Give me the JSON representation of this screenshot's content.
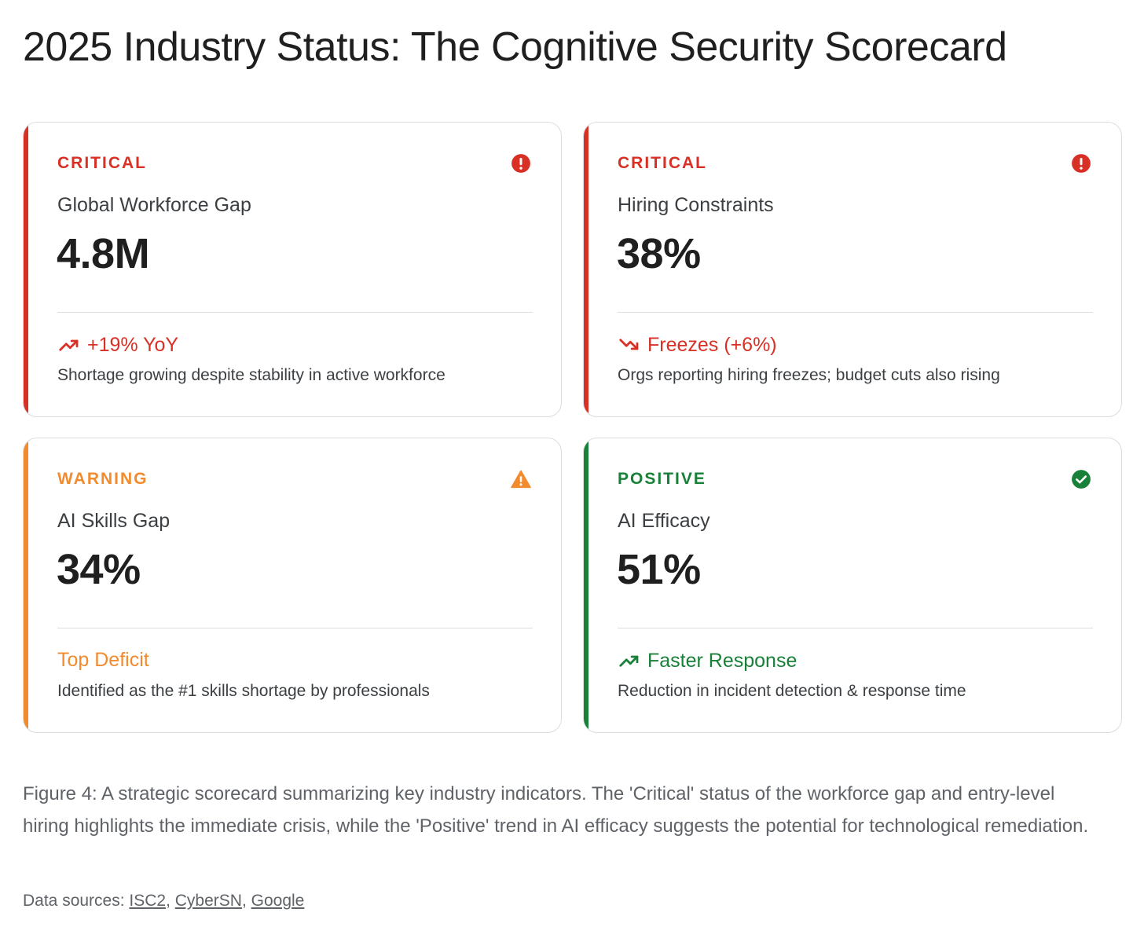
{
  "title": "2025 Industry Status: The Cognitive Security Scorecard",
  "colors": {
    "critical": "#d93025",
    "warning": "#f28b2e",
    "positive": "#188038"
  },
  "cards": [
    {
      "status": "CRITICAL",
      "status_icon": "alert-circle-icon",
      "label": "Global Workforce Gap",
      "value": "4.8M",
      "trend_icon": "trending-up-icon",
      "trend": "+19% YoY",
      "detail": "Shortage growing despite stability in active workforce"
    },
    {
      "status": "CRITICAL",
      "status_icon": "alert-circle-icon",
      "label": "Hiring Constraints",
      "value": "38%",
      "trend_icon": "trending-down-icon",
      "trend": "Freezes (+6%)",
      "detail": "Orgs reporting hiring freezes; budget cuts also rising"
    },
    {
      "status": "WARNING",
      "status_icon": "warning-triangle-icon",
      "label": "AI Skills Gap",
      "value": "34%",
      "trend_icon": "",
      "trend": "Top Deficit",
      "detail": "Identified as the #1 skills shortage by professionals"
    },
    {
      "status": "POSITIVE",
      "status_icon": "check-circle-icon",
      "label": "AI Efficacy",
      "value": "51%",
      "trend_icon": "trending-up-icon",
      "trend": "Faster Response",
      "detail": "Reduction in incident detection & response time"
    }
  ],
  "caption": "Figure 4: A strategic scorecard summarizing key industry indicators. The 'Critical' status of the workforce gap and entry-level hiring highlights the immediate crisis, while the 'Positive' trend in AI efficacy suggests the potential for technological remediation.",
  "sources": {
    "prefix": "Data sources: ",
    "links": [
      "ISC2",
      "CyberSN",
      "Google"
    ],
    "separator": ", "
  }
}
